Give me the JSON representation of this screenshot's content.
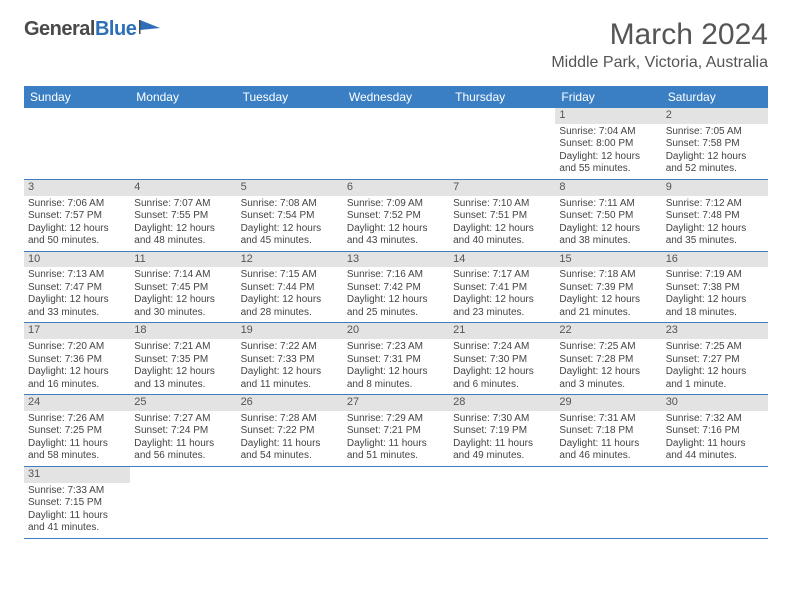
{
  "logo": {
    "text1": "General",
    "text2": "Blue",
    "color_text": "#4a4a4a",
    "color_blue": "#2d6fb8"
  },
  "title": "March 2024",
  "location": "Middle Park, Victoria, Australia",
  "header_bg": "#3a7fc4",
  "row_divider": "#3a7fc4",
  "daynum_bg": "#e3e3e3",
  "background": "#ffffff",
  "text_color": "#444444",
  "font_family": "Arial",
  "weekdays": [
    "Sunday",
    "Monday",
    "Tuesday",
    "Wednesday",
    "Thursday",
    "Friday",
    "Saturday"
  ],
  "weeks": [
    [
      {
        "n": "",
        "sunrise": "",
        "sunset": "",
        "daylight": ""
      },
      {
        "n": "",
        "sunrise": "",
        "sunset": "",
        "daylight": ""
      },
      {
        "n": "",
        "sunrise": "",
        "sunset": "",
        "daylight": ""
      },
      {
        "n": "",
        "sunrise": "",
        "sunset": "",
        "daylight": ""
      },
      {
        "n": "",
        "sunrise": "",
        "sunset": "",
        "daylight": ""
      },
      {
        "n": "1",
        "sunrise": "Sunrise: 7:04 AM",
        "sunset": "Sunset: 8:00 PM",
        "daylight": "Daylight: 12 hours and 55 minutes."
      },
      {
        "n": "2",
        "sunrise": "Sunrise: 7:05 AM",
        "sunset": "Sunset: 7:58 PM",
        "daylight": "Daylight: 12 hours and 52 minutes."
      }
    ],
    [
      {
        "n": "3",
        "sunrise": "Sunrise: 7:06 AM",
        "sunset": "Sunset: 7:57 PM",
        "daylight": "Daylight: 12 hours and 50 minutes."
      },
      {
        "n": "4",
        "sunrise": "Sunrise: 7:07 AM",
        "sunset": "Sunset: 7:55 PM",
        "daylight": "Daylight: 12 hours and 48 minutes."
      },
      {
        "n": "5",
        "sunrise": "Sunrise: 7:08 AM",
        "sunset": "Sunset: 7:54 PM",
        "daylight": "Daylight: 12 hours and 45 minutes."
      },
      {
        "n": "6",
        "sunrise": "Sunrise: 7:09 AM",
        "sunset": "Sunset: 7:52 PM",
        "daylight": "Daylight: 12 hours and 43 minutes."
      },
      {
        "n": "7",
        "sunrise": "Sunrise: 7:10 AM",
        "sunset": "Sunset: 7:51 PM",
        "daylight": "Daylight: 12 hours and 40 minutes."
      },
      {
        "n": "8",
        "sunrise": "Sunrise: 7:11 AM",
        "sunset": "Sunset: 7:50 PM",
        "daylight": "Daylight: 12 hours and 38 minutes."
      },
      {
        "n": "9",
        "sunrise": "Sunrise: 7:12 AM",
        "sunset": "Sunset: 7:48 PM",
        "daylight": "Daylight: 12 hours and 35 minutes."
      }
    ],
    [
      {
        "n": "10",
        "sunrise": "Sunrise: 7:13 AM",
        "sunset": "Sunset: 7:47 PM",
        "daylight": "Daylight: 12 hours and 33 minutes."
      },
      {
        "n": "11",
        "sunrise": "Sunrise: 7:14 AM",
        "sunset": "Sunset: 7:45 PM",
        "daylight": "Daylight: 12 hours and 30 minutes."
      },
      {
        "n": "12",
        "sunrise": "Sunrise: 7:15 AM",
        "sunset": "Sunset: 7:44 PM",
        "daylight": "Daylight: 12 hours and 28 minutes."
      },
      {
        "n": "13",
        "sunrise": "Sunrise: 7:16 AM",
        "sunset": "Sunset: 7:42 PM",
        "daylight": "Daylight: 12 hours and 25 minutes."
      },
      {
        "n": "14",
        "sunrise": "Sunrise: 7:17 AM",
        "sunset": "Sunset: 7:41 PM",
        "daylight": "Daylight: 12 hours and 23 minutes."
      },
      {
        "n": "15",
        "sunrise": "Sunrise: 7:18 AM",
        "sunset": "Sunset: 7:39 PM",
        "daylight": "Daylight: 12 hours and 21 minutes."
      },
      {
        "n": "16",
        "sunrise": "Sunrise: 7:19 AM",
        "sunset": "Sunset: 7:38 PM",
        "daylight": "Daylight: 12 hours and 18 minutes."
      }
    ],
    [
      {
        "n": "17",
        "sunrise": "Sunrise: 7:20 AM",
        "sunset": "Sunset: 7:36 PM",
        "daylight": "Daylight: 12 hours and 16 minutes."
      },
      {
        "n": "18",
        "sunrise": "Sunrise: 7:21 AM",
        "sunset": "Sunset: 7:35 PM",
        "daylight": "Daylight: 12 hours and 13 minutes."
      },
      {
        "n": "19",
        "sunrise": "Sunrise: 7:22 AM",
        "sunset": "Sunset: 7:33 PM",
        "daylight": "Daylight: 12 hours and 11 minutes."
      },
      {
        "n": "20",
        "sunrise": "Sunrise: 7:23 AM",
        "sunset": "Sunset: 7:31 PM",
        "daylight": "Daylight: 12 hours and 8 minutes."
      },
      {
        "n": "21",
        "sunrise": "Sunrise: 7:24 AM",
        "sunset": "Sunset: 7:30 PM",
        "daylight": "Daylight: 12 hours and 6 minutes."
      },
      {
        "n": "22",
        "sunrise": "Sunrise: 7:25 AM",
        "sunset": "Sunset: 7:28 PM",
        "daylight": "Daylight: 12 hours and 3 minutes."
      },
      {
        "n": "23",
        "sunrise": "Sunrise: 7:25 AM",
        "sunset": "Sunset: 7:27 PM",
        "daylight": "Daylight: 12 hours and 1 minute."
      }
    ],
    [
      {
        "n": "24",
        "sunrise": "Sunrise: 7:26 AM",
        "sunset": "Sunset: 7:25 PM",
        "daylight": "Daylight: 11 hours and 58 minutes."
      },
      {
        "n": "25",
        "sunrise": "Sunrise: 7:27 AM",
        "sunset": "Sunset: 7:24 PM",
        "daylight": "Daylight: 11 hours and 56 minutes."
      },
      {
        "n": "26",
        "sunrise": "Sunrise: 7:28 AM",
        "sunset": "Sunset: 7:22 PM",
        "daylight": "Daylight: 11 hours and 54 minutes."
      },
      {
        "n": "27",
        "sunrise": "Sunrise: 7:29 AM",
        "sunset": "Sunset: 7:21 PM",
        "daylight": "Daylight: 11 hours and 51 minutes."
      },
      {
        "n": "28",
        "sunrise": "Sunrise: 7:30 AM",
        "sunset": "Sunset: 7:19 PM",
        "daylight": "Daylight: 11 hours and 49 minutes."
      },
      {
        "n": "29",
        "sunrise": "Sunrise: 7:31 AM",
        "sunset": "Sunset: 7:18 PM",
        "daylight": "Daylight: 11 hours and 46 minutes."
      },
      {
        "n": "30",
        "sunrise": "Sunrise: 7:32 AM",
        "sunset": "Sunset: 7:16 PM",
        "daylight": "Daylight: 11 hours and 44 minutes."
      }
    ],
    [
      {
        "n": "31",
        "sunrise": "Sunrise: 7:33 AM",
        "sunset": "Sunset: 7:15 PM",
        "daylight": "Daylight: 11 hours and 41 minutes."
      },
      {
        "n": "",
        "sunrise": "",
        "sunset": "",
        "daylight": ""
      },
      {
        "n": "",
        "sunrise": "",
        "sunset": "",
        "daylight": ""
      },
      {
        "n": "",
        "sunrise": "",
        "sunset": "",
        "daylight": ""
      },
      {
        "n": "",
        "sunrise": "",
        "sunset": "",
        "daylight": ""
      },
      {
        "n": "",
        "sunrise": "",
        "sunset": "",
        "daylight": ""
      },
      {
        "n": "",
        "sunrise": "",
        "sunset": "",
        "daylight": ""
      }
    ]
  ]
}
